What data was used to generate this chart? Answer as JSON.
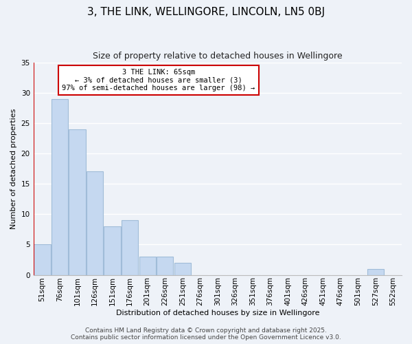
{
  "title": "3, THE LINK, WELLINGORE, LINCOLN, LN5 0BJ",
  "subtitle": "Size of property relative to detached houses in Wellingore",
  "xlabel": "Distribution of detached houses by size in Wellingore",
  "ylabel": "Number of detached properties",
  "footer_line1": "Contains HM Land Registry data © Crown copyright and database right 2025.",
  "footer_line2": "Contains public sector information licensed under the Open Government Licence v3.0.",
  "categories": [
    "51sqm",
    "76sqm",
    "101sqm",
    "126sqm",
    "151sqm",
    "176sqm",
    "201sqm",
    "226sqm",
    "251sqm",
    "276sqm",
    "301sqm",
    "326sqm",
    "351sqm",
    "376sqm",
    "401sqm",
    "426sqm",
    "451sqm",
    "476sqm",
    "501sqm",
    "527sqm",
    "552sqm"
  ],
  "values": [
    5,
    29,
    24,
    17,
    8,
    9,
    3,
    3,
    2,
    0,
    0,
    0,
    0,
    0,
    0,
    0,
    0,
    0,
    0,
    1,
    0
  ],
  "bar_color": "#c5d8f0",
  "bar_edge_color": "#a0bcd8",
  "ylim": [
    0,
    35
  ],
  "yticks": [
    0,
    5,
    10,
    15,
    20,
    25,
    30,
    35
  ],
  "annotation_line1": "3 THE LINK: 65sqm",
  "annotation_line2": "← 3% of detached houses are smaller (3)",
  "annotation_line3": "97% of semi-detached houses are larger (98) →",
  "background_color": "#eef2f8",
  "grid_color": "#ffffff",
  "annotation_box_color": "#ffffff",
  "annotation_box_edge_color": "#cc0000",
  "marker_line_color": "#cc0000",
  "title_fontsize": 11,
  "subtitle_fontsize": 9,
  "axis_label_fontsize": 8,
  "tick_fontsize": 7.5,
  "annotation_fontsize": 7.5,
  "footer_fontsize": 6.5
}
